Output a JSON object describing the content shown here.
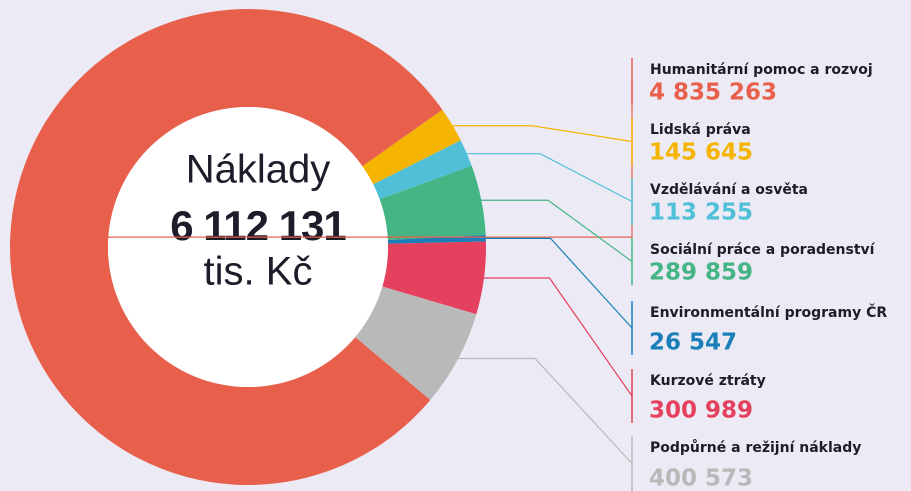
{
  "chart_data": {
    "type": "donut",
    "center_title": "Náklady",
    "center_value": "6 112 131",
    "center_unit": "tis. Kč",
    "categories": [
      "Humanitární pomoc a rozvoj",
      "Lidská práva",
      "Vzdělávání a osvěta",
      "Sociální práce a poradenství",
      "Environmentální programy ČR",
      "Kurzové ztráty",
      "Podpůrné a režijní náklady"
    ],
    "values": [
      4835263,
      145645,
      113255,
      289859,
      26547,
      300989,
      400573
    ],
    "value_labels": [
      "4 835 263",
      "145 645",
      "113 255",
      "289 859",
      "26 547",
      "300 989",
      "400 573"
    ],
    "colors": [
      "#e8604c",
      "#f5b400",
      "#4fc0d8",
      "#46b585",
      "#1a7fb8",
      "#e5405e",
      "#b9b9b9"
    ]
  }
}
